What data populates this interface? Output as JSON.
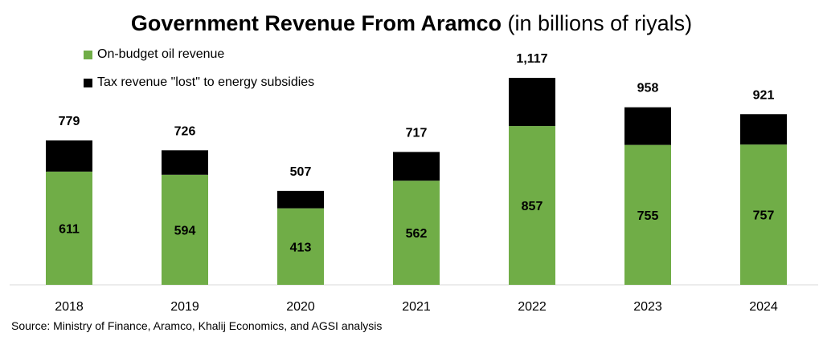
{
  "title": {
    "main": "Government Revenue From Aramco",
    "sub": "(in billions of riyals)"
  },
  "legend": [
    {
      "label": "On-budget oil revenue",
      "color": "#70ad47"
    },
    {
      "label": "Tax revenue \"lost\" to energy subsidies",
      "color": "#000000"
    }
  ],
  "source": "Source: Ministry of Finance, Aramco, Khalij Economics, and AGSI analysis",
  "chart_data": {
    "type": "bar",
    "stacked": true,
    "categories": [
      "2018",
      "2019",
      "2020",
      "2021",
      "2022",
      "2023",
      "2024"
    ],
    "series": [
      {
        "name": "On-budget oil revenue",
        "color": "#70ad47",
        "values": [
          611,
          594,
          413,
          562,
          857,
          755,
          757
        ],
        "labels": [
          "611",
          "594",
          "413",
          "562",
          "857",
          "755",
          "757"
        ]
      },
      {
        "name": "Tax revenue \"lost\" to energy subsidies",
        "color": "#000000",
        "values": [
          168,
          132,
          94,
          155,
          260,
          203,
          164
        ]
      }
    ],
    "totals": [
      "779",
      "726",
      "507",
      "717",
      "1,117",
      "958",
      "921"
    ],
    "ylim": [
      0,
      1200
    ],
    "grid": false,
    "legend_position": "top-left"
  }
}
